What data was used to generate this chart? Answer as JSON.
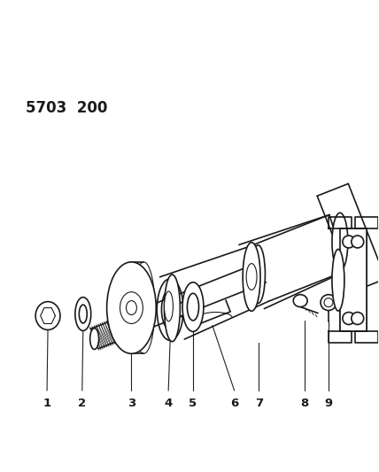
{
  "title": "5703  200",
  "bg_color": "#ffffff",
  "line_color": "#1a1a1a",
  "label_color": "#1a1a1a",
  "label_fontsize": 9.5,
  "title_fontsize": 12
}
